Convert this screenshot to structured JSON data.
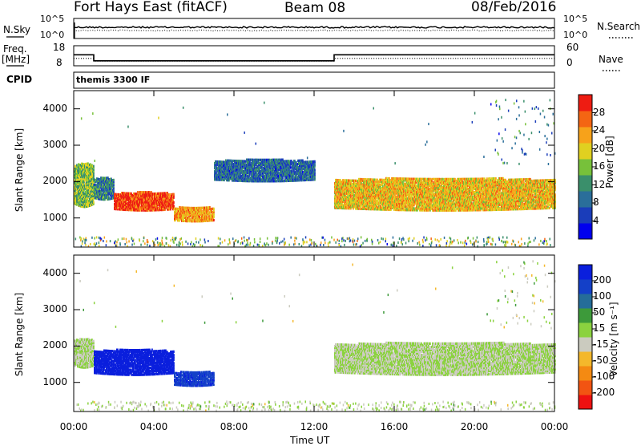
{
  "header": {
    "title": "Fort Hays East (fitACF)",
    "beam": "Beam 08",
    "date": "08/Feb/2016"
  },
  "strip_labels": {
    "nsky": "N.Sky",
    "nsearch": "N.Search",
    "freq": "Freq.",
    "freq_unit": "[MHz]",
    "nave": "Nave",
    "cpid": "CPID",
    "cpid_text": "themis 3300 IF",
    "noise_ticks": [
      "10^5",
      "10^0"
    ],
    "freq_ticks": [
      "18",
      "8"
    ],
    "nave_ticks": [
      "60",
      "0"
    ]
  },
  "colors": {
    "power_scale": [
      "#0000ee",
      "#1a3dba",
      "#2a6e9a",
      "#3a8f6b",
      "#77c13a",
      "#e0d020",
      "#f7a21a",
      "#f46513",
      "#ee1c12"
    ],
    "velocity_scale": [
      "#ee1111",
      "#f25412",
      "#f48a12",
      "#f4b82b",
      "#cbcbbf",
      "#8bd23f",
      "#3d9a3a",
      "#256d99",
      "#1440c8",
      "#0a1fdd"
    ]
  },
  "chart_data": [
    {
      "type": "line",
      "title": "N.Sky / N.Search",
      "x_range": [
        "00:00",
        "24:00"
      ],
      "series": [
        {
          "name": "N.Sky",
          "style": "solid"
        },
        {
          "name": "N.Search",
          "style": "dotted"
        }
      ]
    },
    {
      "type": "line",
      "x": [
        "00:00",
        "01:00",
        "01:00",
        "13:00",
        "13:00",
        "24:00"
      ],
      "series": [
        {
          "name": "Freq.",
          "unit": "MHz",
          "values": [
            13.5,
            13.5,
            10.5,
            10.5,
            13.5,
            13.5
          ]
        },
        {
          "name": "Nave",
          "values": [
            22,
            22,
            14,
            14,
            22,
            22
          ]
        }
      ],
      "ylim_freq": [
        8,
        18
      ],
      "ylim_nave": [
        0,
        60
      ]
    },
    {
      "type": "heatmap",
      "panel": "power",
      "ylabel": "Slant Range [km]",
      "y_ticks": [
        "4000",
        "3000",
        "2000",
        "1000"
      ],
      "ylim": [
        200,
        4500
      ],
      "colorbar_label": "Power [dB]",
      "colorbar_ticks": [
        "28",
        "24",
        "20",
        "16",
        "12",
        "8",
        "4"
      ],
      "features": [
        {
          "t_start": "00:00",
          "t_end": "01:00",
          "range_km": [
            1300,
            2500
          ],
          "level_db": 15
        },
        {
          "t_start": "01:00",
          "t_end": "02:00",
          "range_km": [
            1500,
            2100
          ],
          "level_db": 10
        },
        {
          "t_start": "02:00",
          "t_end": "05:00",
          "range_km": [
            1200,
            1700
          ],
          "level_db": 27
        },
        {
          "t_start": "05:00",
          "t_end": "07:00",
          "range_km": [
            900,
            1300
          ],
          "level_db": 22
        },
        {
          "t_start": "13:00",
          "t_end": "24:00",
          "range_km": [
            1200,
            2100
          ],
          "level_db": 20
        },
        {
          "t_start": "07:00",
          "t_end": "12:00",
          "range_km": [
            2000,
            2600
          ],
          "level_db": 8
        }
      ]
    },
    {
      "type": "heatmap",
      "panel": "velocity",
      "ylabel": "Slant Range [km]",
      "xlabel": "Time UT",
      "x_ticks": [
        "00:00",
        "04:00",
        "08:00",
        "12:00",
        "16:00",
        "20:00",
        "00:00"
      ],
      "y_ticks": [
        "4000",
        "3000",
        "2000",
        "1000"
      ],
      "ylim": [
        200,
        4500
      ],
      "colorbar_label": "Velocity [m s⁻¹]",
      "colorbar_ticks": [
        "200",
        "100",
        "50",
        "15",
        "-15",
        "-50",
        "-100",
        "-200"
      ],
      "features": [
        {
          "t_start": "00:00",
          "t_end": "01:00",
          "range_km": [
            1400,
            2200
          ],
          "velocity": 0
        },
        {
          "t_start": "01:00",
          "t_end": "05:00",
          "range_km": [
            1200,
            1900
          ],
          "velocity": 250
        },
        {
          "t_start": "05:00",
          "t_end": "07:00",
          "range_km": [
            900,
            1300
          ],
          "velocity": 180
        },
        {
          "t_start": "13:00",
          "t_end": "24:00",
          "range_km": [
            1200,
            2100
          ],
          "velocity": 0
        }
      ]
    }
  ]
}
